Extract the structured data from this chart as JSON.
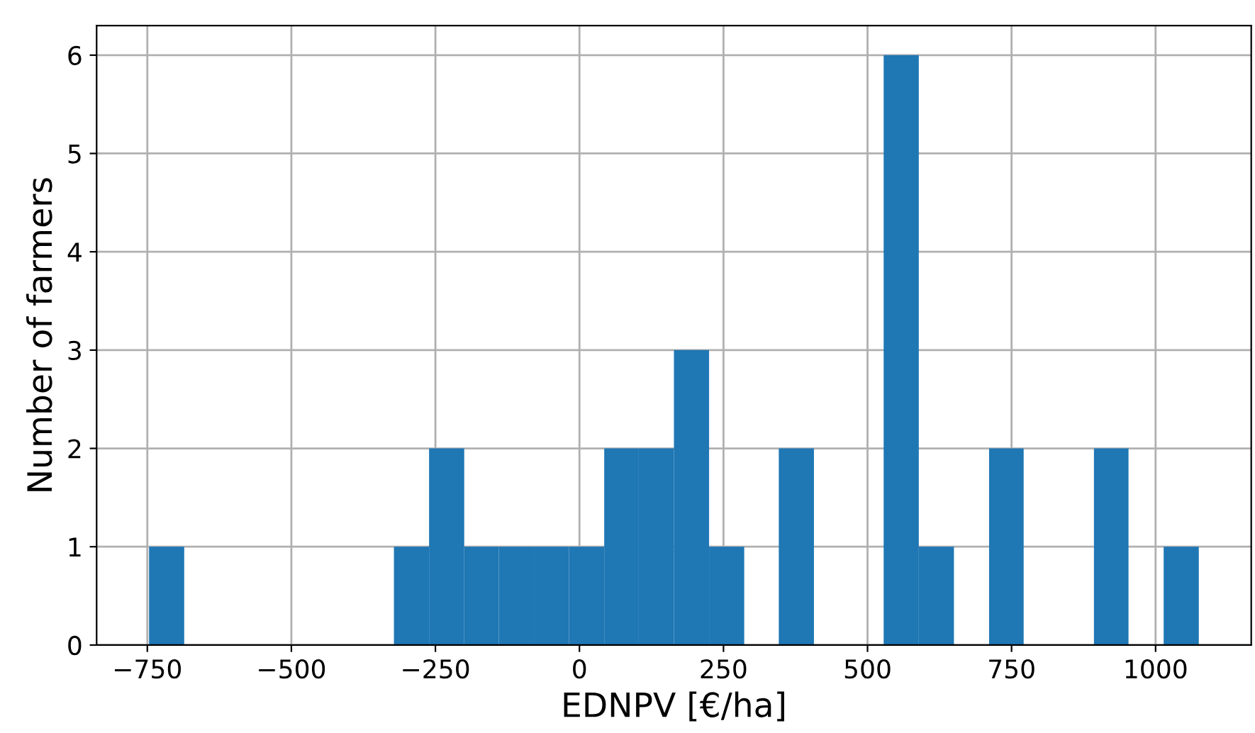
{
  "chart_data": {
    "type": "histogram",
    "xlabel": "EDNPV [€/ha]",
    "ylabel": "Number of farmers",
    "bins": [
      -747,
      -686,
      -322,
      -261,
      -200,
      -140,
      -79,
      -18,
      43,
      103,
      164,
      225,
      286,
      346,
      407,
      528,
      589,
      650,
      711,
      771,
      893,
      953,
      1014,
      1075
    ],
    "values": [
      1,
      0,
      1,
      2,
      1,
      1,
      1,
      1,
      2,
      2,
      3,
      1,
      0,
      2,
      0,
      6,
      1,
      0,
      2,
      0,
      2,
      0,
      1
    ],
    "color": "#1f77b4",
    "xlim": [
      -838,
      1166
    ],
    "xticks": [
      -750,
      -500,
      -250,
      0,
      250,
      500,
      750,
      1000
    ],
    "ylim": [
      0,
      6.3
    ],
    "yticks": [
      0,
      1,
      2,
      3,
      4,
      5,
      6
    ],
    "grid": true
  }
}
